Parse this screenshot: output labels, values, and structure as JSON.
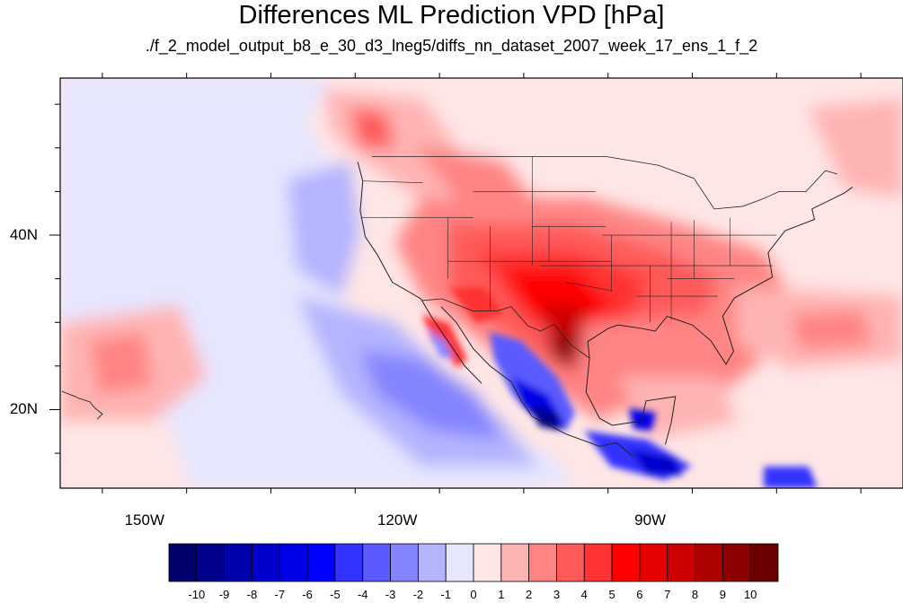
{
  "title": "Differences ML Prediction VPD [hPa]",
  "subtitle": "./f_2_model_output_b8_e_30_d3_lneg5/diffs_nn_dataset_2007_week_17_ens_1_f_2",
  "map": {
    "lon_range": [
      -160,
      -60
    ],
    "lat_range": [
      11,
      58
    ],
    "lat_ticks": [
      {
        "value": 40,
        "label": "40N"
      },
      {
        "value": 20,
        "label": "20N"
      }
    ],
    "lon_ticks": [
      {
        "value": -150,
        "label": "150W"
      },
      {
        "value": -120,
        "label": "120W"
      },
      {
        "value": -90,
        "label": "90W"
      }
    ]
  },
  "colorbar": {
    "labels": [
      "-10",
      "-9",
      "-8",
      "-7",
      "-6",
      "-5",
      "-4",
      "-3",
      "-2",
      "-1",
      "0",
      "1",
      "2",
      "3",
      "4",
      "5",
      "6",
      "7",
      "8",
      "9",
      "10"
    ],
    "colors": [
      "#00006b",
      "#00008c",
      "#0000ad",
      "#0000cc",
      "#0000e6",
      "#0000ff",
      "#3333ff",
      "#5a5aff",
      "#8484ff",
      "#b4b4ff",
      "#e6e6ff",
      "#ffe6e6",
      "#ffb4b4",
      "#ff8484",
      "#ff5a5a",
      "#ff3333",
      "#ff0000",
      "#e60000",
      "#cc0000",
      "#ad0000",
      "#8c0000",
      "#6b0000"
    ]
  }
}
